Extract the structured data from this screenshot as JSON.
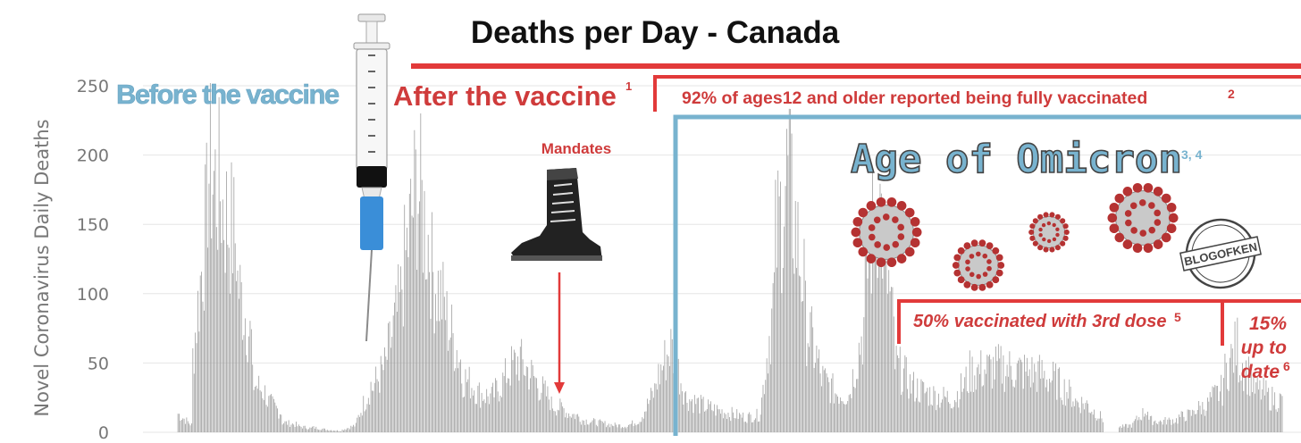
{
  "chart_data": {
    "type": "bar",
    "title": "Deaths per Day - Canada",
    "ylabel": "Novel Coronavirus Daily Deaths",
    "xlabel": "",
    "ylim": [
      0,
      250
    ],
    "yticks": [
      "0",
      "50",
      "100",
      "150",
      "200",
      "250"
    ],
    "grid": true,
    "segments": [
      [
        0,
        0
      ],
      [
        15,
        5
      ],
      [
        60,
        180
      ],
      [
        210,
        190
      ],
      [
        180,
        150
      ],
      [
        120,
        70
      ],
      [
        40,
        30
      ],
      [
        25,
        15
      ],
      [
        8,
        6
      ],
      [
        5,
        3
      ],
      [
        4,
        2
      ],
      [
        2,
        1
      ],
      [
        2,
        6
      ],
      [
        10,
        40
      ],
      [
        35,
        55
      ],
      [
        60,
        110
      ],
      [
        120,
        200
      ],
      [
        200,
        140
      ],
      [
        130,
        95
      ],
      [
        90,
        55
      ],
      [
        45,
        35
      ],
      [
        32,
        28
      ],
      [
        28,
        45
      ],
      [
        48,
        60
      ],
      [
        55,
        42
      ],
      [
        40,
        25
      ],
      [
        22,
        18
      ],
      [
        16,
        12
      ],
      [
        10,
        8
      ],
      [
        8,
        6
      ],
      [
        6,
        5
      ],
      [
        5,
        10
      ],
      [
        12,
        35
      ],
      [
        40,
        70
      ],
      [
        68,
        30
      ],
      [
        28,
        22
      ],
      [
        22,
        18
      ],
      [
        18,
        15
      ],
      [
        15,
        12
      ],
      [
        12,
        14
      ],
      [
        18,
        120
      ],
      [
        150,
        220
      ],
      [
        190,
        110
      ],
      [
        90,
        50
      ],
      [
        45,
        32
      ],
      [
        32,
        30
      ],
      [
        35,
        90
      ],
      [
        120,
        200
      ],
      [
        180,
        70
      ],
      [
        55,
        40
      ],
      [
        38,
        32
      ],
      [
        32,
        28
      ],
      [
        28,
        27
      ],
      [
        28,
        45
      ],
      [
        48,
        50
      ],
      [
        50,
        52
      ],
      [
        52,
        50
      ],
      [
        50,
        48
      ],
      [
        48,
        46
      ],
      [
        45,
        40
      ],
      [
        38,
        28
      ],
      [
        25,
        22
      ],
      [
        20,
        10
      ],
      [
        0,
        0
      ],
      [
        4,
        6
      ],
      [
        8,
        20
      ],
      [
        10,
        8
      ],
      [
        9,
        10
      ],
      [
        12,
        15
      ],
      [
        18,
        22
      ],
      [
        25,
        35
      ],
      [
        45,
        72
      ],
      [
        60,
        40
      ],
      [
        35,
        30
      ],
      [
        28,
        25
      ]
    ],
    "highlight_peak": 73,
    "annotations": {
      "before": "Before the vaccine",
      "after": "After the vaccine",
      "after_note": "1",
      "fully_vaccinated": "92% of ages12 and older reported being fully vaccinated",
      "fully_vaccinated_note": "2",
      "mandates": "Mandates",
      "omicron": "Age of Omicron",
      "omicron_note": "3, 4",
      "third_dose": "50% vaccinated with 3rd dose",
      "third_dose_note": "5",
      "up_to_date_1": "15%",
      "up_to_date_2": "up to",
      "up_to_date_3": "date",
      "up_to_date_note": "6",
      "watermark": "BLOGOFKEN"
    },
    "colors": {
      "bars": "#9e9e9e",
      "red": "#e23a3a",
      "blue": "#78b3cf",
      "grid": "#e6e6e6",
      "virus": "#b53232"
    }
  }
}
